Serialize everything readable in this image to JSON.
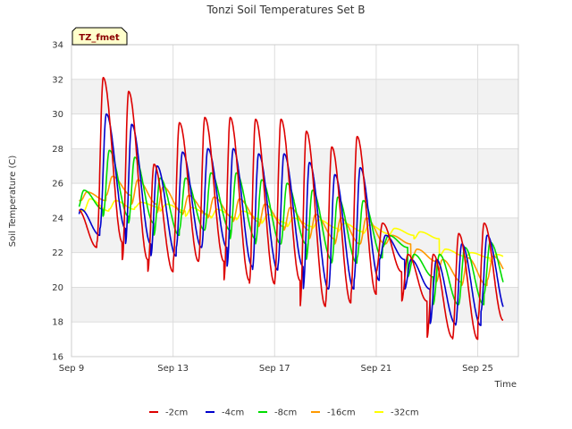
{
  "chart_data": {
    "type": "line",
    "title": "Tonzi Soil Temperatures Set B",
    "xlabel": "Time",
    "ylabel": "Soil Temperature (C)",
    "badge": "TZ_fmet",
    "xlim": [
      0,
      17.6
    ],
    "ylim": [
      16,
      34
    ],
    "y_ticks": [
      16,
      18,
      20,
      22,
      24,
      26,
      28,
      30,
      32,
      34
    ],
    "x_ticks": [
      {
        "value": 0,
        "label": "Sep 9"
      },
      {
        "value": 4,
        "label": "Sep 13"
      },
      {
        "value": 8,
        "label": "Sep 17"
      },
      {
        "value": 12,
        "label": "Sep 21"
      },
      {
        "value": 16,
        "label": "Sep 25"
      }
    ],
    "x_start": 0.3,
    "x_end": 17.0,
    "series": [
      {
        "name": "-2cm",
        "color": "#dd0000",
        "daily_min": [
          22.3,
          22.6,
          21.6,
          20.9,
          21.5,
          21.5,
          20.4,
          20.2,
          20.4,
          18.9,
          19.1,
          19.6,
          20.9,
          19.2,
          17.1,
          17.0,
          18.1,
          17.1,
          17.6
        ],
        "daily_max": [
          24.5,
          32.1,
          31.3,
          27.1,
          29.5,
          29.8,
          29.8,
          29.7,
          29.7,
          29.0,
          28.1,
          28.7,
          23.7,
          21.9,
          21.9,
          23.1,
          23.7,
          21.6,
          21.0
        ]
      },
      {
        "name": "-4cm",
        "color": "#0000cc",
        "daily_min": [
          23.0,
          23.4,
          22.5,
          21.8,
          22.3,
          22.3,
          21.2,
          21.0,
          21.2,
          19.9,
          19.9,
          20.4,
          21.6,
          19.9,
          17.9,
          17.8,
          18.6,
          17.9,
          18.4
        ],
        "daily_max": [
          24.5,
          30.0,
          29.4,
          27.0,
          27.8,
          28.0,
          28.0,
          27.7,
          27.7,
          27.2,
          26.5,
          26.9,
          23.0,
          21.6,
          21.6,
          22.5,
          23.0,
          21.3,
          21.0
        ]
      },
      {
        "name": "-8cm",
        "color": "#00dd00",
        "daily_min": [
          24.5,
          24.1,
          23.7,
          23.0,
          23.3,
          23.3,
          22.8,
          22.5,
          22.5,
          21.6,
          21.4,
          21.7,
          22.3,
          20.6,
          19.0,
          19.0,
          19.6,
          19.0,
          19.3
        ],
        "daily_max": [
          25.6,
          27.9,
          27.5,
          26.3,
          26.3,
          26.6,
          26.6,
          26.2,
          26.0,
          25.6,
          25.2,
          25.0,
          23.0,
          21.9,
          21.9,
          22.3,
          22.6,
          21.0,
          21.0
        ]
      },
      {
        "name": "-16cm",
        "color": "#ff9900",
        "daily_min": [
          25.0,
          25.3,
          24.8,
          24.3,
          24.2,
          24.0,
          23.8,
          23.5,
          23.3,
          22.8,
          22.5,
          22.5,
          22.5,
          21.5,
          20.3,
          20.1,
          20.4,
          20.1,
          20.4
        ],
        "daily_max": [
          25.5,
          26.4,
          26.2,
          25.8,
          25.3,
          25.2,
          25.1,
          24.8,
          24.6,
          24.2,
          24.0,
          24.0,
          23.0,
          22.2,
          21.6,
          21.7,
          21.8,
          21.3,
          21.0
        ]
      },
      {
        "name": "-32cm",
        "color": "#ffff00",
        "daily_min": [
          24.4,
          24.5,
          24.6,
          24.4,
          24.1,
          24.0,
          23.9,
          23.7,
          23.5,
          23.4,
          23.2,
          23.1,
          23.0,
          22.8,
          21.8,
          21.7,
          21.5,
          21.4,
          21.5
        ],
        "daily_max": [
          25.1,
          25.0,
          24.9,
          24.8,
          24.6,
          24.5,
          24.4,
          24.2,
          24.0,
          23.9,
          23.7,
          23.6,
          23.4,
          23.2,
          22.2,
          22.0,
          21.9,
          21.6,
          21.5
        ]
      }
    ],
    "legend_position": "bottom-center",
    "grid": true
  }
}
